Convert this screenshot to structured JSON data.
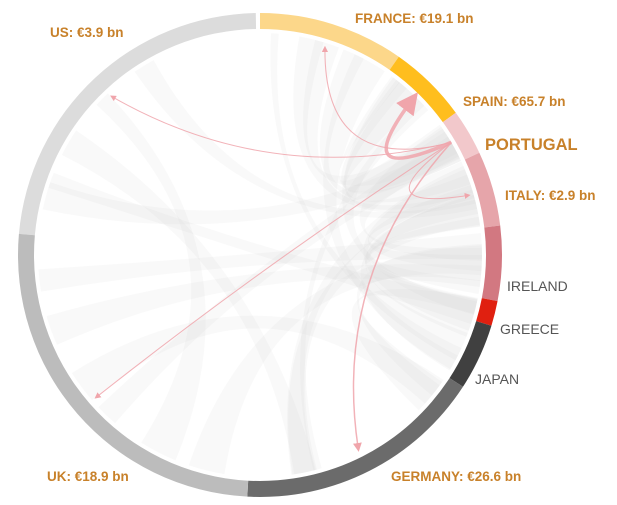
{
  "diagram": {
    "focus_label": "PORTUGAL",
    "colors": {
      "highlight_text": "#c8812a",
      "dim_text": "#555555",
      "ribbon_background": "#cfcfcf",
      "portugal_flow": "#f0a5ab"
    },
    "segments": [
      {
        "id": "us",
        "label": "US: €3.9 bn",
        "start": 275,
        "end": 359,
        "color": "#dcdcdc",
        "highlight": true
      },
      {
        "id": "france",
        "label": "FRANCE: €19.1 bn",
        "start": 0,
        "end": 35,
        "color": "#fcd78a",
        "highlight": true
      },
      {
        "id": "spain",
        "label": "SPAIN: €65.7 bn",
        "start": 35,
        "end": 54,
        "color": "#ffbe1e",
        "highlight": true
      },
      {
        "id": "portugal",
        "label": "",
        "start": 54,
        "end": 65,
        "color": "#f2c8cb",
        "highlight": true
      },
      {
        "id": "italy",
        "label": "ITALY: €2.9 bn",
        "start": 65,
        "end": 83,
        "color": "#e6a5aa",
        "highlight": true
      },
      {
        "id": "ireland",
        "label": "IRELAND",
        "start": 83,
        "end": 101,
        "color": "#d27881",
        "highlight": false
      },
      {
        "id": "greece",
        "label": "GREECE",
        "start": 101,
        "end": 107,
        "color": "#e02010",
        "highlight": false
      },
      {
        "id": "japan",
        "label": "JAPAN",
        "start": 107,
        "end": 123,
        "color": "#404040",
        "highlight": false
      },
      {
        "id": "germany",
        "label": "GERMANY: €26.6 bn",
        "start": 123,
        "end": 183,
        "color": "#6b6b6b",
        "highlight": true
      },
      {
        "id": "uk",
        "label": "UK: €18.9 bn",
        "start": 183,
        "end": 275,
        "color": "#bcbcbc",
        "highlight": true
      }
    ],
    "portugal_flows": [
      {
        "to": "us",
        "value": 3.9
      },
      {
        "to": "france",
        "value": 19.1
      },
      {
        "to": "spain",
        "value": 65.7
      },
      {
        "to": "italy",
        "value": 2.9
      },
      {
        "to": "germany",
        "value": 26.6
      },
      {
        "to": "uk",
        "value": 18.9
      }
    ]
  }
}
